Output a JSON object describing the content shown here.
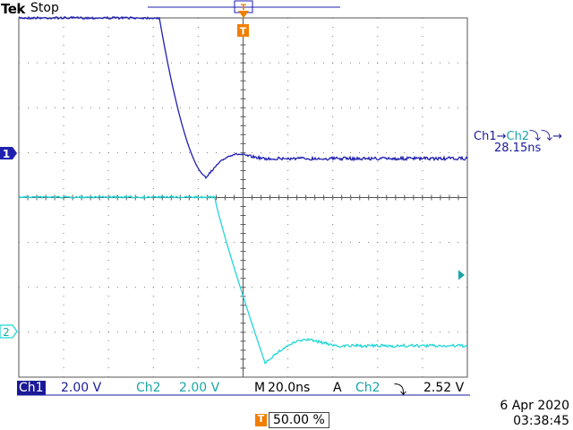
{
  "header": {
    "brand": "Tek",
    "status": "Stop",
    "trigger_marker_top": "T",
    "trigger_marker_bottom": "T"
  },
  "colors": {
    "ch1": "#1f1fb0",
    "ch2": "#22d6d6",
    "grid": "#555555",
    "trigger": "#f07f00",
    "ch1_box": "#1a1a99",
    "ch2_text": "#1aa6a6"
  },
  "channel_markers": {
    "ch1": "1",
    "ch2": "2"
  },
  "measurement": {
    "label_ch1": "Ch1",
    "label_ch2": "Ch2",
    "value": "28.15ns"
  },
  "bottom_bar": {
    "ch1_label": "Ch1",
    "ch1_scale": "2.00 V",
    "ch2_label": "Ch2",
    "ch2_scale": "2.00 V",
    "timebase_label": "M",
    "timebase": "20.0ns",
    "trigger_label": "A",
    "trigger_source": "Ch2",
    "trigger_level": "2.52 V"
  },
  "trigger_position": {
    "marker": "T",
    "value": "50.00 %"
  },
  "datetime": {
    "date": "6 Apr  2020",
    "time": "03:38:45"
  }
}
